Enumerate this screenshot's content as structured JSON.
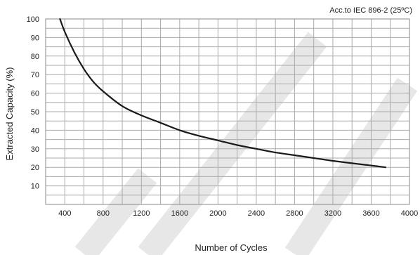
{
  "chart_data": {
    "type": "line",
    "title": "",
    "annotation": "Acc.to IEC 896-2 (25ºC)",
    "xlabel": "Number of Cycles",
    "ylabel": "Extracted Capacity (%)",
    "xlim": [
      200,
      4000
    ],
    "ylim": [
      0,
      100
    ],
    "x_ticks": [
      400,
      800,
      1200,
      1600,
      2000,
      2400,
      2800,
      3200,
      3600,
      4000
    ],
    "y_ticks": [
      10,
      20,
      30,
      40,
      50,
      60,
      70,
      80,
      90,
      100
    ],
    "grid": true,
    "series": [
      {
        "x": [
          350,
          400,
          500,
          600,
          700,
          800,
          1000,
          1200,
          1400,
          1600,
          1800,
          2000,
          2200,
          2400,
          2600,
          2800,
          3000,
          3200,
          3400,
          3600,
          3750
        ],
        "values": [
          100,
          93,
          82,
          73,
          66,
          61,
          53,
          48,
          44,
          40,
          37,
          34.5,
          32,
          30,
          28,
          26.5,
          25,
          23.5,
          22.2,
          21,
          20
        ]
      }
    ]
  },
  "colors": {
    "line": "#1a1a1a",
    "grid": "#aaaaaa",
    "watermark": "#d4d4d4"
  }
}
